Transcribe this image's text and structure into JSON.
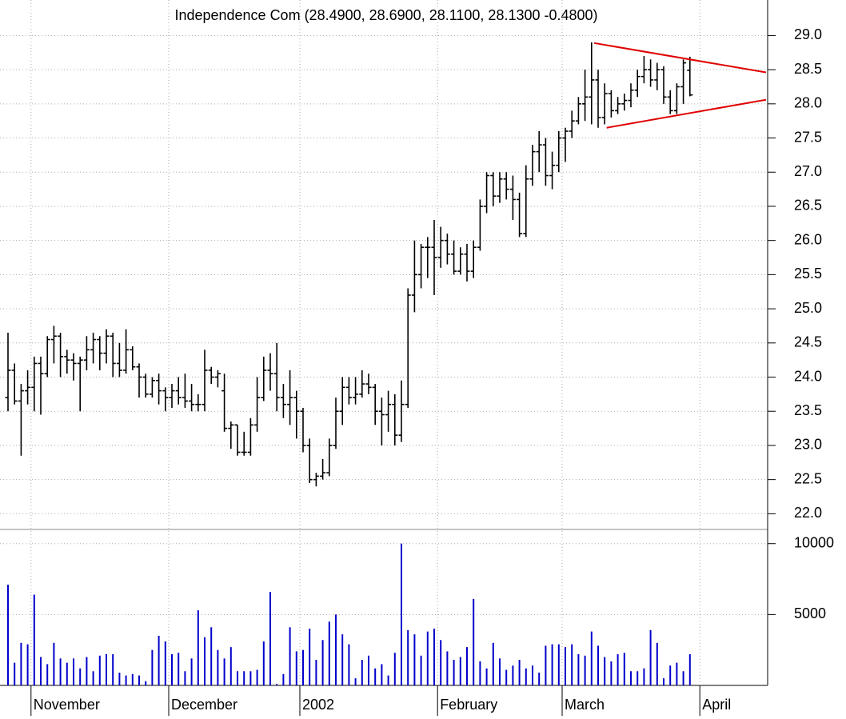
{
  "chart_data": [
    {
      "type": "ohlc",
      "title": "Independence Com (28.4900, 28.6900, 28.1100, 28.1300 -0.4800)",
      "color": "#000000",
      "categories": [
        null,
        null,
        null,
        null,
        "November",
        null,
        null,
        null,
        null,
        null,
        null,
        null,
        null,
        null,
        null,
        null,
        null,
        null,
        null,
        null,
        null,
        null,
        null,
        null,
        null,
        "December",
        null,
        null,
        null,
        null,
        null,
        null,
        null,
        null,
        null,
        null,
        null,
        null,
        null,
        null,
        null,
        null,
        null,
        null,
        null,
        "2002",
        null,
        null,
        null,
        null,
        null,
        null,
        null,
        null,
        null,
        null,
        null,
        null,
        null,
        null,
        null,
        null,
        null,
        null,
        null,
        null,
        "February",
        null,
        null,
        null,
        null,
        null,
        null,
        null,
        null,
        null,
        null,
        null,
        null,
        null,
        null,
        null,
        null,
        null,
        null,
        "March",
        null,
        null,
        null,
        null,
        null,
        null,
        null,
        null,
        null,
        null,
        null,
        null,
        null,
        null,
        null,
        null,
        null,
        null,
        null,
        null,
        "April"
      ],
      "open": [
        23.7,
        24.1,
        23.65,
        23.8,
        23.85,
        24.2,
        24.05,
        24.55,
        24.6,
        24.3,
        24.25,
        24.2,
        24.25,
        24.4,
        24.55,
        24.35,
        24.6,
        24.2,
        24.1,
        24.4,
        24.15,
        24.0,
        23.75,
        23.95,
        23.8,
        23.7,
        23.8,
        23.7,
        23.65,
        23.6,
        23.6,
        24.1,
        24.0,
        23.8,
        23.25,
        23.3,
        22.9,
        22.9,
        23.3,
        23.7,
        24.1,
        24.05,
        23.7,
        23.6,
        23.7,
        23.5,
        23.0,
        22.5,
        22.55,
        22.6,
        23.0,
        23.5,
        23.85,
        23.7,
        23.75,
        23.9,
        23.85,
        23.5,
        23.45,
        23.6,
        23.15,
        23.6,
        25.2,
        25.5,
        25.9,
        25.9,
        25.75,
        26.0,
        25.8,
        25.55,
        25.8,
        25.55,
        25.9,
        26.5,
        26.95,
        26.65,
        26.9,
        26.75,
        26.6,
        26.1,
        26.9,
        27.3,
        27.4,
        26.95,
        27.1,
        27.5,
        27.6,
        27.75,
        28.0,
        28.1,
        28.35,
        27.8,
        28.15,
        27.9,
        28.0,
        28.05,
        28.2,
        28.4,
        28.5,
        28.35,
        28.5,
        28.1,
        27.9,
        28.25,
        28.49,
        null,
        null
      ],
      "high": [
        24.65,
        24.2,
        23.9,
        24.1,
        24.3,
        24.3,
        24.6,
        24.75,
        24.65,
        24.4,
        24.35,
        24.3,
        24.6,
        24.65,
        24.6,
        24.7,
        24.65,
        24.5,
        24.7,
        24.45,
        24.2,
        24.05,
        24.0,
        24.05,
        23.85,
        23.9,
        24.0,
        24.05,
        23.9,
        23.75,
        24.4,
        24.15,
        24.1,
        24.05,
        23.35,
        23.3,
        23.2,
        23.4,
        24.0,
        24.3,
        24.35,
        24.5,
        23.9,
        24.1,
        23.8,
        23.55,
        23.1,
        22.6,
        22.8,
        23.1,
        23.7,
        24.0,
        24.0,
        24.0,
        24.1,
        24.05,
        23.9,
        23.7,
        23.8,
        23.75,
        23.95,
        25.3,
        26.0,
        25.95,
        26.05,
        26.3,
        26.2,
        26.1,
        26.0,
        25.9,
        25.95,
        26.0,
        26.6,
        27.0,
        27.0,
        27.0,
        27.0,
        26.95,
        26.7,
        27.1,
        27.4,
        27.6,
        27.5,
        27.3,
        27.6,
        27.65,
        27.9,
        28.1,
        28.5,
        28.9,
        28.5,
        28.3,
        28.2,
        28.1,
        28.15,
        28.3,
        28.5,
        28.7,
        28.65,
        28.6,
        28.55,
        28.2,
        28.3,
        28.65,
        28.69,
        null,
        null
      ],
      "low": [
        23.5,
        23.6,
        22.85,
        23.6,
        23.5,
        23.45,
        24.0,
        24.2,
        24.0,
        24.05,
        23.95,
        23.5,
        24.1,
        24.2,
        24.1,
        24.2,
        24.0,
        24.0,
        24.05,
        24.1,
        23.7,
        23.7,
        23.7,
        23.6,
        23.5,
        23.55,
        23.6,
        23.55,
        23.5,
        23.5,
        23.5,
        23.9,
        23.85,
        23.2,
        22.95,
        22.85,
        22.85,
        22.85,
        23.2,
        23.65,
        23.8,
        23.5,
        23.4,
        23.3,
        23.1,
        22.9,
        22.45,
        22.4,
        22.5,
        22.55,
        22.95,
        23.3,
        23.6,
        23.6,
        23.7,
        23.75,
        23.3,
        23.0,
        23.2,
        23.0,
        23.05,
        23.55,
        24.95,
        25.3,
        25.45,
        25.2,
        25.6,
        25.65,
        25.5,
        25.5,
        25.4,
        25.45,
        25.85,
        26.4,
        26.5,
        26.55,
        26.6,
        26.3,
        26.05,
        26.05,
        26.8,
        27.0,
        26.8,
        26.75,
        27.0,
        27.15,
        27.5,
        27.7,
        27.75,
        27.7,
        27.65,
        27.7,
        27.8,
        27.85,
        27.9,
        27.95,
        28.1,
        28.3,
        28.25,
        28.2,
        28.0,
        27.85,
        27.85,
        28.0,
        28.11,
        null,
        null
      ],
      "close": [
        24.1,
        23.65,
        23.8,
        23.85,
        24.2,
        24.05,
        24.55,
        24.6,
        24.3,
        24.25,
        24.2,
        24.25,
        24.4,
        24.55,
        24.35,
        24.6,
        24.2,
        24.1,
        24.4,
        24.15,
        24.0,
        23.75,
        23.95,
        23.8,
        23.7,
        23.8,
        23.7,
        23.65,
        23.6,
        23.6,
        24.1,
        24.0,
        24.05,
        23.25,
        23.3,
        22.9,
        22.9,
        23.3,
        23.7,
        24.1,
        24.05,
        23.7,
        23.6,
        23.7,
        23.5,
        23.0,
        22.5,
        22.55,
        22.6,
        23.0,
        23.5,
        23.85,
        23.7,
        23.75,
        23.9,
        23.85,
        23.5,
        23.45,
        23.6,
        23.15,
        23.6,
        25.2,
        25.5,
        25.9,
        25.9,
        25.75,
        26.0,
        25.8,
        25.55,
        25.8,
        25.55,
        25.9,
        26.5,
        26.95,
        26.65,
        26.9,
        26.75,
        26.6,
        26.1,
        26.9,
        27.3,
        27.4,
        26.95,
        27.1,
        27.5,
        27.6,
        27.75,
        28.0,
        28.1,
        28.35,
        27.8,
        28.15,
        27.9,
        28.0,
        28.05,
        28.2,
        28.4,
        28.5,
        28.35,
        28.5,
        28.1,
        27.9,
        28.25,
        28.6,
        28.13,
        null,
        null
      ],
      "ylim": [
        21.77,
        29.52
      ],
      "yticks": [
        {
          "value": 22,
          "label": "22.0"
        },
        22.5,
        {
          "value": 23,
          "label": "23.0"
        },
        23.5,
        {
          "value": 24,
          "label": "24.0"
        },
        24.5,
        {
          "value": 25,
          "label": "25.0"
        },
        25.5,
        {
          "value": 26,
          "label": "26.0"
        },
        26.5,
        {
          "value": 27,
          "label": "27.0"
        },
        27.5,
        {
          "value": 28,
          "label": "28.0"
        },
        28.5,
        {
          "value": 29,
          "label": "29.0"
        }
      ],
      "grid": true,
      "trendlines": [
        {
          "color": "#e00000",
          "x": [
            89.4,
            115.6
          ],
          "y": [
            28.89,
            28.46
          ]
        },
        {
          "color": "#e00000",
          "x": [
            91.3,
            115.6
          ],
          "y": [
            27.65,
            28.06
          ]
        }
      ]
    },
    {
      "type": "bar",
      "color": "#0000cc",
      "values": [
        7100,
        1600,
        3000,
        2900,
        6400,
        2000,
        1500,
        3000,
        1900,
        1600,
        1900,
        1200,
        2000,
        1000,
        2100,
        2200,
        2200,
        900,
        700,
        800,
        700,
        300,
        2500,
        3500,
        3100,
        2200,
        2300,
        1000,
        1900,
        5300,
        3400,
        4100,
        2500,
        1900,
        2700,
        1000,
        1000,
        1000,
        1100,
        3100,
        6600,
        100,
        800,
        4100,
        2400,
        2500,
        4000,
        1800,
        3200,
        4500,
        5000,
        3600,
        2900,
        500,
        1800,
        2100,
        1200,
        1500,
        700,
        2300,
        10000,
        3900,
        3600,
        2100,
        3800,
        4000,
        3200,
        2400,
        1800,
        2000,
        2700,
        6100,
        1700,
        1200,
        3000,
        1900,
        1100,
        1400,
        1800,
        1200,
        1400,
        900,
        2800,
        2900,
        2900,
        2700,
        2900,
        2200,
        2100,
        3800,
        2800,
        2000,
        1700,
        2200,
        2300,
        1000,
        1000,
        1200,
        3900,
        3000,
        500,
        1400,
        1600,
        1000,
        2200,
        null,
        null
      ],
      "ylim": [
        0,
        11000
      ],
      "yticks": [
        5000,
        10000
      ],
      "grid": true
    }
  ]
}
